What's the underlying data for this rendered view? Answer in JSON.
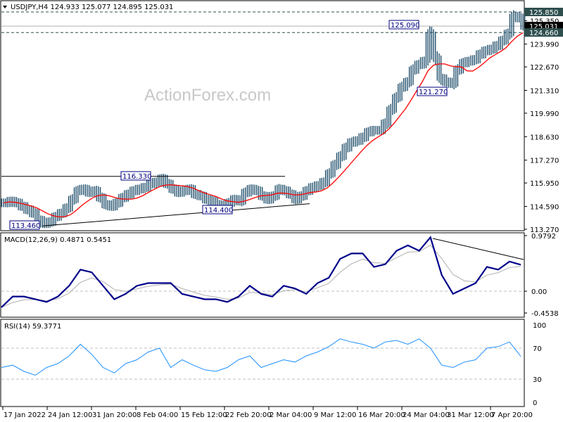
{
  "header": {
    "symbol_line": "USDJPY,H4  124.933 125.077 124.895 125.031"
  },
  "watermark": "ActionForex.com",
  "colors": {
    "bars": "#1f4e6b",
    "ma": "#ff0000",
    "macd": "#00008b",
    "signal": "#b0b0b0",
    "rsi": "#1e90ff",
    "label_border": "#000080"
  },
  "chart_data": [
    {
      "type": "bar",
      "title": "USDJPY,H4",
      "ohlc_last": {
        "open": 124.933,
        "high": 125.077,
        "low": 124.895,
        "close": 125.031
      },
      "x_ticks": [
        "17 Jan 2022",
        "24 Jan 12:00",
        "31 Jan 20:00",
        "8 Feb 04:00",
        "15 Feb 12:00",
        "22 Feb 20:00",
        "2 Mar 04:00",
        "9 Mar 12:00",
        "16 Mar 20:00",
        "24 Mar 04:00",
        "31 Mar 12:00",
        "7 Apr 20:00"
      ],
      "y_ticks": [
        "113.270",
        "114.590",
        "115.950",
        "117.270",
        "118.630",
        "119.990",
        "121.310",
        "122.670",
        "123.990",
        "125.350"
      ],
      "ylim": [
        113.27,
        125.85
      ],
      "price_marks": [
        {
          "label": "125.850",
          "value": 125.85,
          "style": "dashed"
        },
        {
          "label": "125.031",
          "value": 125.031,
          "style": "current"
        },
        {
          "label": "124.660",
          "value": 124.66,
          "style": "dashed"
        }
      ],
      "annotations": [
        {
          "text": "113.460",
          "value": 113.46
        },
        {
          "text": "116.330",
          "value": 116.33
        },
        {
          "text": "114.400",
          "value": 114.4
        },
        {
          "text": "125.090",
          "value": 125.09
        },
        {
          "text": "121.270",
          "value": 121.27
        }
      ],
      "close": [
        114.8,
        114.9,
        114.8,
        114.6,
        114.4,
        114.2,
        113.8,
        113.6,
        113.7,
        114.0,
        114.2,
        114.5,
        115.0,
        115.5,
        115.6,
        115.4,
        115.5,
        115.1,
        114.7,
        114.6,
        114.8,
        115.1,
        115.3,
        115.5,
        115.6,
        115.7,
        115.9,
        116.0,
        116.2,
        115.9,
        115.6,
        115.4,
        115.5,
        115.6,
        115.3,
        115.2,
        115.0,
        114.9,
        114.7,
        114.5,
        114.8,
        115.0,
        114.9,
        115.4,
        115.6,
        115.5,
        115.2,
        115.0,
        115.2,
        115.6,
        115.5,
        115.3,
        115.0,
        115.2,
        115.5,
        115.7,
        115.8,
        116.0,
        116.5,
        117.0,
        117.5,
        118.0,
        118.3,
        118.4,
        118.6,
        118.9,
        119.0,
        119.0,
        119.4,
        120.2,
        120.9,
        121.5,
        121.8,
        122.5,
        122.8,
        123.0,
        124.6,
        123.2,
        122.0,
        121.8,
        121.7,
        122.5,
        122.9,
        123.0,
        123.1,
        123.4,
        123.6,
        123.7,
        123.9,
        124.2,
        124.6,
        125.6,
        125.5,
        125.031
      ]
    },
    {
      "type": "line",
      "title": "MACD(12,26,9) 0.4871 0.5451",
      "y_ticks": [
        "0.9792",
        "0.00",
        "-0.4538"
      ],
      "ylim": [
        -0.4538,
        0.9792
      ],
      "macd": [
        -0.3,
        -0.1,
        -0.1,
        -0.15,
        -0.2,
        -0.1,
        0.1,
        0.4,
        0.35,
        0.1,
        -0.15,
        -0.05,
        0.1,
        0.15,
        0.15,
        0.15,
        -0.05,
        -0.1,
        -0.15,
        -0.15,
        -0.2,
        -0.1,
        0.1,
        -0.05,
        -0.1,
        0.1,
        0.05,
        -0.05,
        0.15,
        0.25,
        0.6,
        0.7,
        0.7,
        0.45,
        0.5,
        0.75,
        0.85,
        0.75,
        1.0,
        0.3,
        -0.05,
        0.05,
        0.15,
        0.45,
        0.4,
        0.55,
        0.49
      ]
    },
    {
      "type": "line",
      "title": "RSI(14) 59.3771",
      "y_ticks": [
        "100",
        "70",
        "30",
        "0"
      ],
      "ylim": [
        0,
        100
      ],
      "rsi": [
        45,
        48,
        40,
        35,
        45,
        50,
        60,
        75,
        62,
        45,
        38,
        50,
        55,
        65,
        70,
        45,
        55,
        48,
        42,
        40,
        45,
        55,
        60,
        45,
        50,
        55,
        52,
        60,
        65,
        72,
        82,
        78,
        75,
        70,
        78,
        80,
        75,
        82,
        70,
        48,
        45,
        52,
        55,
        70,
        72,
        78,
        59.4
      ]
    }
  ]
}
